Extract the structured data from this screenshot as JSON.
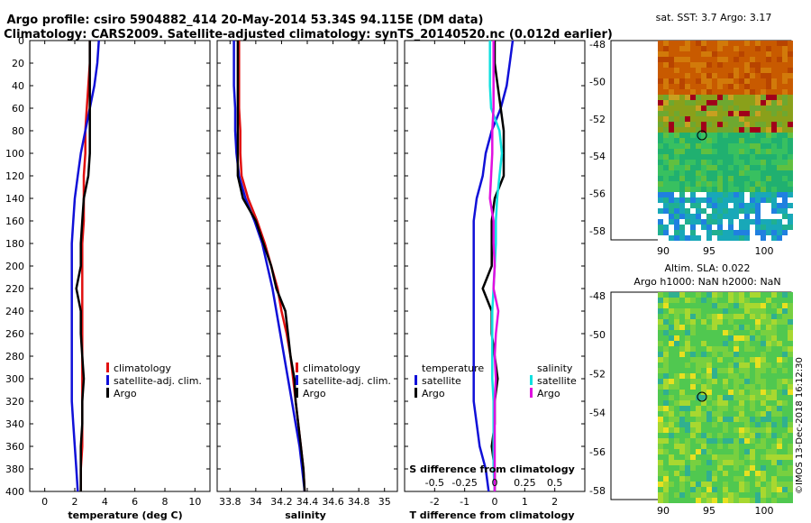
{
  "header": {
    "title_line1": "Argo profile: csiro 5904882_414 20-May-2014 53.34S 94.115E (DM data)",
    "title_line2": "Climatology: CARS2009. Satellite-adjusted climatology: synTS_20140520.nc (0.012d earlier)"
  },
  "colors": {
    "climatology": "#e01010",
    "satellite": "#1010d8",
    "argo": "#000000",
    "salinity_satellite": "#10e0e0",
    "salinity_argo": "#e010e0"
  },
  "depth_axis": {
    "label": "",
    "ticks": [
      0,
      20,
      40,
      60,
      80,
      100,
      120,
      140,
      160,
      180,
      200,
      220,
      240,
      260,
      280,
      300,
      320,
      340,
      360,
      380,
      400
    ]
  },
  "chart_data": [
    {
      "type": "line",
      "name": "temperature-panel",
      "xlabel": "temperature (deg C)",
      "xlim": [
        -1,
        11
      ],
      "ylim": [
        400,
        0
      ],
      "xticks": [
        0,
        2,
        4,
        6,
        8,
        10
      ],
      "xtick_labels": [
        "0",
        "2",
        "4",
        "6",
        "8",
        "10"
      ],
      "legend": [
        "climatology",
        "satellite-adj. clim.",
        "Argo"
      ],
      "legend_position": "bottom-right",
      "series": [
        {
          "name": "climatology",
          "color": "climatology",
          "x": [
            3.0,
            3.0,
            2.9,
            2.8,
            2.7,
            2.7,
            2.6,
            2.6,
            2.6,
            2.5,
            2.5,
            2.5,
            2.5,
            2.5,
            2.5,
            2.5,
            2.5,
            2.5,
            2.5,
            2.4,
            2.4
          ],
          "y": [
            0,
            20,
            40,
            60,
            80,
            100,
            120,
            140,
            160,
            180,
            200,
            220,
            240,
            260,
            280,
            300,
            320,
            340,
            360,
            380,
            400
          ]
        },
        {
          "name": "satellite-adj. clim.",
          "color": "satellite",
          "x": [
            3.6,
            3.5,
            3.3,
            3.0,
            2.7,
            2.4,
            2.2,
            2.0,
            1.9,
            1.8,
            1.8,
            1.8,
            1.8,
            1.8,
            1.8,
            1.8,
            1.8,
            1.9,
            2.0,
            2.1,
            2.2
          ],
          "y": [
            0,
            20,
            40,
            60,
            80,
            100,
            120,
            140,
            160,
            180,
            200,
            220,
            240,
            260,
            280,
            300,
            320,
            340,
            360,
            380,
            400
          ]
        },
        {
          "name": "Argo",
          "color": "argo",
          "x": [
            3.0,
            3.0,
            3.0,
            3.0,
            3.0,
            3.0,
            2.9,
            2.6,
            2.5,
            2.4,
            2.4,
            2.1,
            2.4,
            2.4,
            2.5,
            2.6,
            2.5,
            2.5,
            2.4,
            2.4,
            2.4
          ],
          "y": [
            0,
            20,
            40,
            60,
            80,
            100,
            120,
            140,
            160,
            180,
            200,
            220,
            240,
            260,
            280,
            300,
            320,
            340,
            360,
            380,
            400
          ]
        }
      ]
    },
    {
      "type": "line",
      "name": "salinity-panel",
      "xlabel": "salinity",
      "xlim": [
        33.7,
        35.1
      ],
      "ylim": [
        400,
        0
      ],
      "xticks": [
        33.8,
        34,
        34.2,
        34.4,
        34.6,
        34.8,
        35
      ],
      "xtick_labels": [
        "33.8",
        "34",
        "34.2",
        "34.4",
        "34.6",
        "34.8",
        "35"
      ],
      "legend": [
        "climatology",
        "satellite-adj. clim.",
        "Argo"
      ],
      "legend_position": "bottom-right",
      "series": [
        {
          "name": "climatology",
          "color": "climatology",
          "x": [
            33.87,
            33.87,
            33.87,
            33.87,
            33.88,
            33.88,
            33.89,
            33.94,
            34.01,
            34.07,
            34.12,
            34.17,
            34.2,
            34.24,
            34.27,
            34.29,
            34.31,
            34.33,
            34.35,
            34.37,
            34.38
          ],
          "y": [
            0,
            20,
            40,
            60,
            80,
            100,
            120,
            140,
            160,
            180,
            200,
            220,
            240,
            260,
            280,
            300,
            320,
            340,
            360,
            380,
            400
          ]
        },
        {
          "name": "satellite-adj. clim.",
          "color": "satellite",
          "x": [
            33.83,
            33.83,
            33.83,
            33.84,
            33.84,
            33.85,
            33.87,
            33.92,
            33.99,
            34.05,
            34.09,
            34.13,
            34.16,
            34.19,
            34.22,
            34.25,
            34.28,
            34.31,
            34.34,
            34.36,
            34.38
          ],
          "y": [
            0,
            20,
            40,
            60,
            80,
            100,
            120,
            140,
            160,
            180,
            200,
            220,
            240,
            260,
            280,
            300,
            320,
            340,
            360,
            380,
            400
          ]
        },
        {
          "name": "Argo",
          "color": "argo",
          "x": [
            33.86,
            33.86,
            33.86,
            33.86,
            33.86,
            33.86,
            33.86,
            33.9,
            34.0,
            34.06,
            34.12,
            34.16,
            34.23,
            34.25,
            34.27,
            34.3,
            34.31,
            34.33,
            34.35,
            34.37,
            34.38
          ],
          "y": [
            0,
            20,
            40,
            60,
            80,
            100,
            120,
            140,
            160,
            180,
            200,
            220,
            240,
            260,
            280,
            300,
            320,
            340,
            360,
            380,
            400
          ]
        }
      ]
    },
    {
      "type": "line",
      "name": "difference-panel",
      "xlabel": "T difference from climatology",
      "xlabel_top": "S difference from climatology",
      "xlim": [
        -3,
        3
      ],
      "ylim": [
        400,
        0
      ],
      "xticks": [
        -2,
        -1,
        0,
        1,
        2
      ],
      "xtick_labels": [
        "-2",
        "-1",
        "0",
        "1",
        "2"
      ],
      "s_xticks": [
        "-0.5",
        "-0.25",
        "0",
        "0.25",
        "0.5"
      ],
      "legend_left": {
        "heading": "temperature",
        "items": [
          "satellite",
          "Argo"
        ]
      },
      "legend_right": {
        "heading": "salinity",
        "items": [
          "satellite",
          "Argo"
        ]
      },
      "series": [
        {
          "name": "temperature satellite",
          "color": "satellite",
          "x": [
            0.6,
            0.5,
            0.4,
            0.2,
            -0.1,
            -0.3,
            -0.4,
            -0.6,
            -0.7,
            -0.7,
            -0.7,
            -0.7,
            -0.7,
            -0.7,
            -0.7,
            -0.7,
            -0.7,
            -0.6,
            -0.5,
            -0.3,
            -0.2
          ],
          "y": [
            0,
            20,
            40,
            60,
            80,
            100,
            120,
            140,
            160,
            180,
            200,
            220,
            240,
            260,
            280,
            300,
            320,
            340,
            360,
            380,
            400
          ]
        },
        {
          "name": "temperature Argo",
          "color": "argo",
          "x": [
            0.0,
            0.0,
            0.1,
            0.2,
            0.3,
            0.3,
            0.3,
            0.0,
            -0.1,
            -0.1,
            -0.1,
            -0.4,
            -0.1,
            -0.1,
            0.0,
            0.1,
            0.0,
            0.0,
            -0.1,
            0.0,
            0.0
          ],
          "y": [
            0,
            20,
            40,
            60,
            80,
            100,
            120,
            140,
            160,
            180,
            200,
            220,
            240,
            260,
            280,
            300,
            320,
            340,
            360,
            380,
            400
          ]
        },
        {
          "name": "salinity satellite",
          "color": "salinity_satellite",
          "x": [
            -0.04,
            -0.04,
            -0.04,
            -0.03,
            0.04,
            0.06,
            0.04,
            0.02,
            0.01,
            0.01,
            0.0,
            -0.01,
            -0.02,
            -0.02,
            -0.02,
            -0.02,
            -0.01,
            -0.01,
            -0.01,
            -0.01,
            0.0
          ],
          "y": [
            0,
            20,
            40,
            60,
            80,
            100,
            120,
            140,
            160,
            180,
            200,
            220,
            240,
            260,
            280,
            300,
            320,
            340,
            360,
            380,
            400
          ]
        },
        {
          "name": "salinity Argo",
          "color": "salinity_argo",
          "x": [
            -0.01,
            -0.01,
            -0.01,
            -0.01,
            -0.02,
            -0.02,
            -0.03,
            -0.04,
            -0.01,
            -0.01,
            0.0,
            -0.01,
            0.03,
            0.01,
            0.0,
            0.01,
            0.0,
            0.0,
            0.0,
            0.0,
            0.0
          ],
          "y": [
            0,
            20,
            40,
            60,
            80,
            100,
            120,
            140,
            160,
            180,
            200,
            220,
            240,
            260,
            280,
            300,
            320,
            340,
            360,
            380,
            400
          ]
        }
      ]
    }
  ],
  "map_top": {
    "title": "sat. SST: 3.7 Argo: 3.17",
    "yticks": [
      "-48",
      "-50",
      "-52",
      "-54",
      "-56",
      "-58"
    ],
    "xticks": [
      "90",
      "95",
      "100"
    ]
  },
  "map_bottom": {
    "title_line1": "Altim. SLA: 0.022",
    "title_line2": "Argo h1000: NaN h2000: NaN",
    "yticks": [
      "-48",
      "-50",
      "-52",
      "-54",
      "-56",
      "-58"
    ],
    "xticks": [
      "90",
      "95",
      "100"
    ]
  },
  "credit": "©IMOS 13-Dec-2018 16:12:30"
}
